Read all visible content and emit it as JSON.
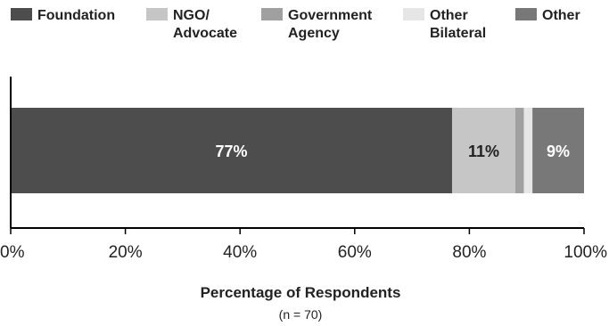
{
  "chart_data": {
    "type": "bar",
    "orientation": "horizontal",
    "stacked": true,
    "categories": [
      ""
    ],
    "series": [
      {
        "name": "Foundation",
        "values": [
          77
        ],
        "color": "#4d4d4d",
        "label": "77%"
      },
      {
        "name": "NGO/ Advocate",
        "values": [
          11
        ],
        "color": "#c6c6c6",
        "label": "11%"
      },
      {
        "name": "Government Agency",
        "values": [
          1.5
        ],
        "color": "#a0a0a0",
        "label": ""
      },
      {
        "name": "Other Bilateral",
        "values": [
          1.5
        ],
        "color": "#e6e6e6",
        "label": ""
      },
      {
        "name": "Other",
        "values": [
          9
        ],
        "color": "#787878",
        "label": "9%"
      }
    ],
    "legend": {
      "position": "top",
      "entries": [
        {
          "lines": [
            "Foundation"
          ],
          "color": "#4d4d4d"
        },
        {
          "lines": [
            "NGO/",
            "Advocate"
          ],
          "color": "#c6c6c6"
        },
        {
          "lines": [
            "Government",
            "Agency"
          ],
          "color": "#a0a0a0"
        },
        {
          "lines": [
            "Other",
            "Bilateral"
          ],
          "color": "#e6e6e6"
        },
        {
          "lines": [
            "Other"
          ],
          "color": "#787878"
        }
      ]
    },
    "xlim": [
      0,
      100
    ],
    "xticks": [
      0,
      20,
      40,
      60,
      80,
      100
    ],
    "xtick_labels": [
      "0%",
      "20%",
      "40%",
      "60%",
      "80%",
      "100%"
    ],
    "xlabel": "Percentage of Respondents",
    "note": "(n = 70)",
    "grid": false
  }
}
